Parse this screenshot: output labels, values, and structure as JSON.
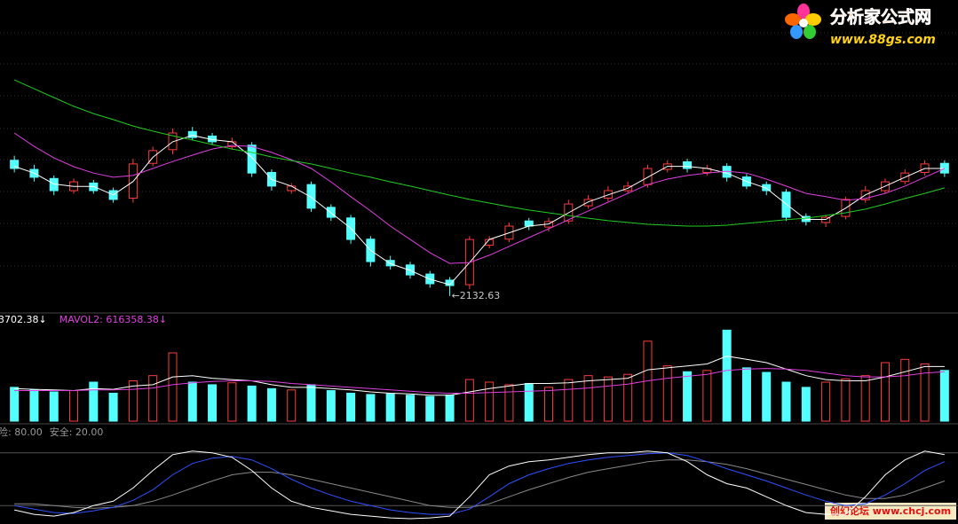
{
  "logo": {
    "title": "分析家公式网",
    "url": "www.88gs.com"
  },
  "watermark": "创幻论坛 www.chcj.com",
  "chart_data": [
    {
      "type": "candlestick",
      "up_color": "#ff3c3c",
      "down_color": "#54ffff",
      "ylim": [
        2100,
        3050
      ],
      "open": [
        2580,
        2550,
        2520,
        2480,
        2505,
        2480,
        2455,
        2570,
        2615,
        2675,
        2660,
        2625,
        2630,
        2540,
        2480,
        2500,
        2425,
        2390,
        2320,
        2250,
        2235,
        2205,
        2185,
        2170,
        2300,
        2320,
        2380,
        2360,
        2380,
        2430,
        2455,
        2480,
        2500,
        2550,
        2575,
        2540,
        2560,
        2525,
        2500,
        2475,
        2395,
        2375,
        2395,
        2450,
        2480,
        2510,
        2540,
        2570
      ],
      "high": [
        2595,
        2565,
        2530,
        2520,
        2515,
        2490,
        2585,
        2625,
        2685,
        2690,
        2670,
        2655,
        2640,
        2550,
        2505,
        2510,
        2435,
        2400,
        2330,
        2265,
        2245,
        2215,
        2195,
        2330,
        2330,
        2375,
        2390,
        2390,
        2450,
        2465,
        2495,
        2510,
        2565,
        2580,
        2585,
        2565,
        2570,
        2535,
        2510,
        2485,
        2405,
        2400,
        2460,
        2495,
        2520,
        2550,
        2580,
        2580
      ],
      "low": [
        2540,
        2510,
        2465,
        2470,
        2470,
        2440,
        2440,
        2560,
        2600,
        2645,
        2630,
        2615,
        2525,
        2480,
        2470,
        2410,
        2380,
        2305,
        2230,
        2220,
        2190,
        2160,
        2132.63,
        2155,
        2290,
        2310,
        2350,
        2345,
        2370,
        2420,
        2445,
        2470,
        2490,
        2540,
        2540,
        2530,
        2510,
        2485,
        2465,
        2380,
        2365,
        2360,
        2385,
        2440,
        2470,
        2500,
        2530,
        2525
      ],
      "close": [
        2553,
        2524,
        2480,
        2509,
        2480,
        2451,
        2568,
        2612,
        2670,
        2655,
        2641,
        2641,
        2538,
        2495,
        2495,
        2422,
        2392,
        2319,
        2246,
        2232,
        2202,
        2173,
        2167,
        2319,
        2319,
        2363,
        2363,
        2378,
        2436,
        2451,
        2480,
        2495,
        2553,
        2568,
        2553,
        2553,
        2524,
        2495,
        2480,
        2392,
        2378,
        2392,
        2451,
        2480,
        2509,
        2538,
        2568,
        2538
      ],
      "series": [
        {
          "color": "#ffffff",
          "values": [
            2560,
            2538,
            2502,
            2494,
            2494,
            2466,
            2510,
            2590,
            2641,
            2662,
            2648,
            2641,
            2590,
            2517,
            2495,
            2458,
            2407,
            2356,
            2283,
            2239,
            2217,
            2188,
            2170,
            2243,
            2319,
            2341,
            2363,
            2370,
            2407,
            2443,
            2466,
            2488,
            2524,
            2560,
            2560,
            2553,
            2538,
            2510,
            2488,
            2436,
            2385,
            2385,
            2422,
            2466,
            2495,
            2524,
            2553,
            2553
          ]
        },
        {
          "color": "#e040e0",
          "values": [
            2670,
            2626,
            2588,
            2559,
            2538,
            2524,
            2530,
            2553,
            2576,
            2597,
            2617,
            2629,
            2626,
            2606,
            2582,
            2553,
            2509,
            2460,
            2413,
            2363,
            2319,
            2275,
            2240,
            2243,
            2267,
            2296,
            2325,
            2354,
            2384,
            2413,
            2442,
            2471,
            2500,
            2518,
            2530,
            2538,
            2544,
            2538,
            2518,
            2495,
            2471,
            2460,
            2448,
            2454,
            2471,
            2495,
            2524,
            2553
          ]
        },
        {
          "color": "#22cc22",
          "values": [
            2845,
            2816,
            2787,
            2758,
            2734,
            2714,
            2693,
            2676,
            2661,
            2647,
            2632,
            2617,
            2606,
            2591,
            2579,
            2568,
            2553,
            2538,
            2524,
            2509,
            2495,
            2480,
            2465,
            2451,
            2439,
            2427,
            2416,
            2407,
            2398,
            2389,
            2381,
            2375,
            2369,
            2366,
            2363,
            2363,
            2366,
            2372,
            2378,
            2384,
            2389,
            2398,
            2407,
            2419,
            2436,
            2454,
            2471,
            2489
          ]
        }
      ],
      "annotations": [
        {
          "label": "←2132.63",
          "value": 2132.63
        }
      ]
    },
    {
      "type": "volume",
      "up_color": "#ff3c3c",
      "down_color": "#54ffff",
      "ylim": [
        0,
        1500000
      ],
      "values": [
        520000,
        480000,
        450000,
        470000,
        600000,
        430000,
        620000,
        700000,
        1050000,
        600000,
        560000,
        590000,
        540000,
        500000,
        480000,
        560000,
        470000,
        430000,
        410000,
        420000,
        400000,
        380000,
        400000,
        640000,
        600000,
        560000,
        580000,
        520000,
        640000,
        700000,
        680000,
        720000,
        1230000,
        850000,
        760000,
        780000,
        1400000,
        820000,
        750000,
        600000,
        520000,
        600000,
        650000,
        700000,
        900000,
        950000,
        880000,
        780000
      ],
      "series": [
        {
          "name": "3702.38↓",
          "color": "#ffffff",
          "values": [
            500000,
            490000,
            480000,
            470000,
            500000,
            490000,
            540000,
            560000,
            680000,
            700000,
            660000,
            640000,
            620000,
            560000,
            520000,
            520000,
            500000,
            480000,
            450000,
            430000,
            420000,
            400000,
            400000,
            450000,
            500000,
            540000,
            580000,
            580000,
            590000,
            620000,
            640000,
            660000,
            790000,
            820000,
            850000,
            880000,
            1000000,
            950000,
            900000,
            800000,
            700000,
            640000,
            620000,
            620000,
            680000,
            760000,
            840000,
            840000
          ]
        },
        {
          "name": "MAVOL2: 616358.38↓",
          "color": "#e040e0",
          "values": [
            470000,
            470000,
            470000,
            470000,
            480000,
            480000,
            490000,
            510000,
            560000,
            590000,
            610000,
            620000,
            620000,
            610000,
            580000,
            560000,
            540000,
            520000,
            500000,
            480000,
            460000,
            440000,
            430000,
            430000,
            440000,
            450000,
            460000,
            470000,
            490000,
            510000,
            540000,
            570000,
            620000,
            660000,
            690000,
            720000,
            780000,
            800000,
            810000,
            800000,
            780000,
            740000,
            700000,
            680000,
            680000,
            700000,
            740000,
            760000
          ]
        }
      ]
    },
    {
      "type": "line",
      "ylim": [
        0,
        100
      ],
      "levels": [
        {
          "value": 80,
          "label": "险: 80.00"
        },
        {
          "value": 20,
          "label": "安全: 20.00"
        }
      ],
      "series": [
        {
          "color": "#888888",
          "values": [
            22,
            22,
            20,
            18,
            17,
            18,
            20,
            25,
            32,
            40,
            48,
            55,
            58,
            58,
            55,
            50,
            45,
            40,
            35,
            30,
            25,
            20,
            18,
            18,
            22,
            30,
            38,
            45,
            52,
            58,
            62,
            66,
            70,
            72,
            72,
            70,
            67,
            62,
            56,
            50,
            44,
            38,
            32,
            28,
            28,
            32,
            40,
            48
          ]
        },
        {
          "color": "#3050ff",
          "values": [
            20,
            16,
            12,
            11,
            14,
            18,
            26,
            38,
            55,
            68,
            74,
            76,
            72,
            62,
            50,
            40,
            32,
            25,
            20,
            15,
            12,
            10,
            10,
            16,
            30,
            45,
            55,
            62,
            68,
            72,
            75,
            77,
            79,
            80,
            77,
            70,
            62,
            55,
            48,
            40,
            32,
            25,
            20,
            22,
            32,
            45,
            60,
            70
          ]
        },
        {
          "color": "#ffffff",
          "values": [
            15,
            10,
            8,
            12,
            20,
            25,
            40,
            60,
            78,
            82,
            80,
            75,
            60,
            40,
            25,
            18,
            14,
            10,
            8,
            6,
            5,
            6,
            8,
            30,
            55,
            65,
            70,
            72,
            75,
            78,
            80,
            80,
            82,
            80,
            70,
            55,
            45,
            40,
            30,
            20,
            12,
            10,
            10,
            30,
            55,
            72,
            82,
            78
          ]
        }
      ]
    }
  ]
}
